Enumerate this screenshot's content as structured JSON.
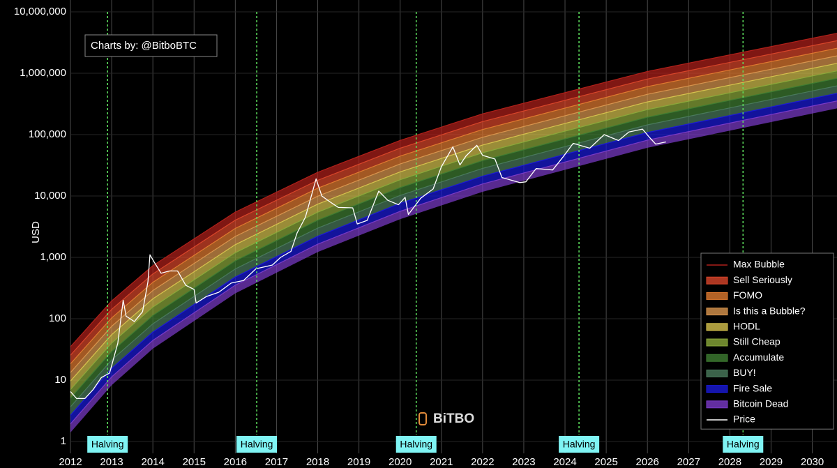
{
  "chart_data": {
    "type": "line",
    "y_label": "USD",
    "attribution": "Charts by: @BitboBTC",
    "watermark": "BiTBO",
    "log_y": true,
    "grid": true,
    "legend": "lower right",
    "xlim": [
      2012,
      2030.6
    ],
    "ylim": [
      0.64,
      15600000
    ],
    "xticks": [
      2012,
      2013,
      2014,
      2015,
      2016,
      2017,
      2018,
      2019,
      2020,
      2021,
      2022,
      2023,
      2024,
      2025,
      2026,
      2027,
      2028,
      2029,
      2030
    ],
    "yticks": [
      1,
      10,
      100,
      {
        "value": 1000,
        "label": "1,000"
      },
      {
        "value": 10000,
        "label": "10,000"
      },
      {
        "value": 100000,
        "label": "100,000"
      },
      {
        "value": 1000000,
        "label": "1,000,000"
      },
      {
        "value": 10000000,
        "label": "10,000,000"
      }
    ],
    "bands": {
      "x": [
        2012,
        2013,
        2014,
        2016,
        2018,
        2020,
        2022,
        2026,
        2030.6
      ],
      "series": [
        {
          "name": "Max Bubble",
          "color": "#b0201a",
          "values": [
            35.0,
            195,
            733,
            5460,
            24300,
            80500,
            218000,
            1070000,
            4480000
          ]
        },
        {
          "name": "Sell Seriously",
          "color": "#d8452a",
          "values": [
            25.4,
            142,
            537,
            4030,
            18000,
            60000,
            163000,
            805000,
            3380000
          ]
        },
        {
          "name": "FOMO",
          "color": "#e07a30",
          "values": [
            18.4,
            103,
            393,
            2960,
            13400,
            44600,
            121000,
            605000,
            2550000
          ]
        },
        {
          "name": "Is this a Bubble?",
          "color": "#d9954e",
          "values": [
            13.3,
            75.3,
            288,
            2190,
            9910,
            33200,
            90600,
            454000,
            1920000
          ]
        },
        {
          "name": "HODL",
          "color": "#d6c24e",
          "values": [
            9.66,
            55.0,
            211,
            1610,
            7350,
            24700,
            67600,
            341000,
            1450000
          ]
        },
        {
          "name": "Still Cheap",
          "color": "#8aa83a",
          "values": [
            7.0,
            40.1,
            155,
            1190,
            5440,
            18400,
            50600,
            256000,
            1090000
          ]
        },
        {
          "name": "Accumulate",
          "color": "#3f7d32",
          "values": [
            5.07,
            29.2,
            113,
            877,
            4030,
            13700,
            37800,
            192000,
            826000
          ]
        },
        {
          "name": "BUY!",
          "color": "#4a7a5c",
          "values": [
            3.67,
            21.3,
            82.8,
            647,
            2990,
            10200,
            28200,
            144000,
            622000
          ]
        },
        {
          "name": "Fire Sale",
          "color": "#1a1ad8",
          "values": [
            2.67,
            15.5,
            60.7,
            478,
            2210,
            7570,
            21000,
            108000,
            470000
          ]
        },
        {
          "name": "Bitcoin Dead",
          "color": "#7a3ac8",
          "values": [
            1.93,
            11.3,
            44.4,
            352,
            1640,
            5620,
            15700,
            81300,
            354000
          ],
          "lower": [
            1.4,
            8.24,
            32.5,
            259,
            1220,
            4190,
            11700,
            61000,
            267000
          ]
        }
      ]
    },
    "series": [
      {
        "name": "Price",
        "color": "#ffffff",
        "x": [
          2012.0,
          2012.15,
          2012.35,
          2012.55,
          2012.75,
          2012.95,
          2013.15,
          2013.28,
          2013.35,
          2013.55,
          2013.75,
          2013.88,
          2013.93,
          2014.05,
          2014.2,
          2014.4,
          2014.6,
          2014.8,
          2015.0,
          2015.05,
          2015.3,
          2015.6,
          2015.9,
          2016.2,
          2016.5,
          2016.9,
          2017.1,
          2017.35,
          2017.5,
          2017.7,
          2017.96,
          2018.1,
          2018.3,
          2018.5,
          2018.85,
          2018.96,
          2019.2,
          2019.48,
          2019.7,
          2019.96,
          2020.12,
          2020.2,
          2020.5,
          2020.8,
          2021.0,
          2021.28,
          2021.45,
          2021.6,
          2021.86,
          2022.0,
          2022.3,
          2022.47,
          2022.9,
          2023.05,
          2023.3,
          2023.7,
          2023.95,
          2024.2,
          2024.6,
          2024.95,
          2025.3,
          2025.55,
          2025.88,
          2026.05,
          2026.2,
          2026.45
        ],
        "values": [
          6.5,
          5,
          5,
          7,
          11,
          13,
          40,
          200,
          110,
          90,
          130,
          400,
          1100,
          800,
          550,
          600,
          600,
          350,
          300,
          180,
          230,
          270,
          380,
          420,
          650,
          750,
          1000,
          1250,
          2500,
          4500,
          19000,
          10000,
          8000,
          6500,
          6400,
          3500,
          4000,
          12000,
          8500,
          7200,
          9500,
          5000,
          9200,
          13000,
          30000,
          63000,
          32000,
          45000,
          67000,
          46000,
          40000,
          20000,
          16500,
          17000,
          28000,
          26500,
          43000,
          72000,
          60000,
          100000,
          80000,
          110000,
          123000,
          90000,
          70000,
          76000
        ]
      }
    ],
    "halvings": [
      {
        "x": 2012.9,
        "label": "Halving"
      },
      {
        "x": 2016.52,
        "label": "Halving"
      },
      {
        "x": 2020.39,
        "label": "Halving"
      },
      {
        "x": 2024.34,
        "label": "Halving"
      },
      {
        "x": 2028.32,
        "label": "Halving"
      }
    ]
  }
}
